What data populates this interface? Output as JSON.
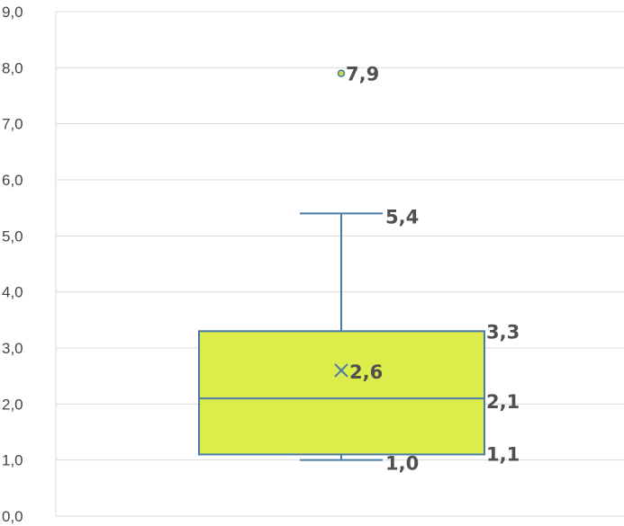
{
  "chart_data": {
    "type": "box",
    "title": "",
    "xlabel": "",
    "ylabel": "",
    "ylim": [
      0,
      9
    ],
    "y_ticks": [
      "0,0",
      "1,0",
      "2,0",
      "3,0",
      "4,0",
      "5,0",
      "6,0",
      "7,0",
      "8,0",
      "9,0"
    ],
    "grid": true,
    "legend": "none",
    "box": {
      "whisker_low": 1.0,
      "q1": 1.1,
      "median": 2.1,
      "q3": 3.3,
      "whisker_high": 5.4,
      "mean": 2.6,
      "outliers": [
        7.9
      ]
    },
    "labels": {
      "whisker_low": "1,0",
      "q1": "1,1",
      "median": "2,1",
      "q3": "3,3",
      "whisker_high": "5,4",
      "mean": "2,6",
      "outlier": "7,9"
    },
    "colors": {
      "box_fill": "#dcec4a",
      "box_stroke": "#4a7aa8",
      "grid": "#d9d9d9",
      "axis_text": "#444444",
      "label_text": "#505050",
      "outlier_fill": "#c8dc3c"
    }
  }
}
